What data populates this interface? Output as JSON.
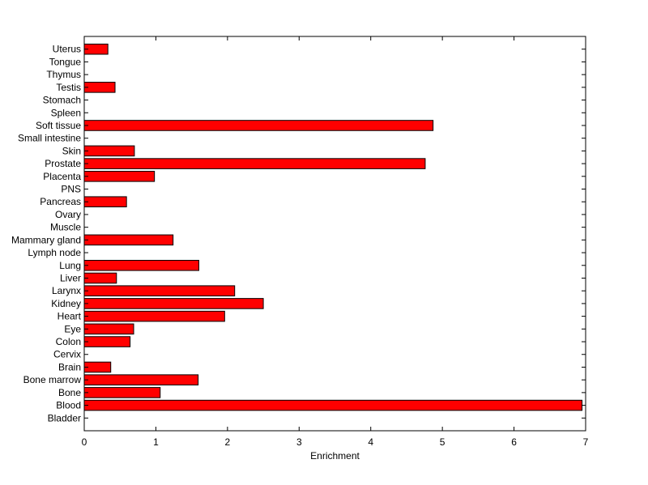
{
  "chart_data": {
    "type": "bar",
    "orientation": "horizontal",
    "title": "",
    "xlabel": "Enrichment",
    "ylabel": "",
    "xlim": [
      0,
      7
    ],
    "xticks": [
      "0",
      "1",
      "2",
      "3",
      "4",
      "5",
      "6",
      "7"
    ],
    "grid": false,
    "legend": "none",
    "bar_color": "#ff0000",
    "bar_edge_color": "#000000",
    "categories": [
      "Bladder",
      "Blood",
      "Bone",
      "Bone marrow",
      "Brain",
      "Cervix",
      "Colon",
      "Eye",
      "Heart",
      "Kidney",
      "Larynx",
      "Liver",
      "Lung",
      "Lymph node",
      "Mammary gland",
      "Muscle",
      "Ovary",
      "Pancreas",
      "PNS",
      "Placenta",
      "Prostate",
      "Skin",
      "Small intestine",
      "Soft tissue",
      "Spleen",
      "Stomach",
      "Testis",
      "Thymus",
      "Tongue",
      "Uterus"
    ],
    "values": [
      0,
      6.95,
      1.06,
      1.59,
      0.37,
      0,
      0.64,
      0.69,
      1.96,
      2.5,
      2.1,
      0.45,
      1.6,
      0,
      1.24,
      0,
      0,
      0.59,
      0,
      0.98,
      4.76,
      0.7,
      0,
      4.87,
      0,
      0,
      0.43,
      0,
      0,
      0.33
    ]
  }
}
